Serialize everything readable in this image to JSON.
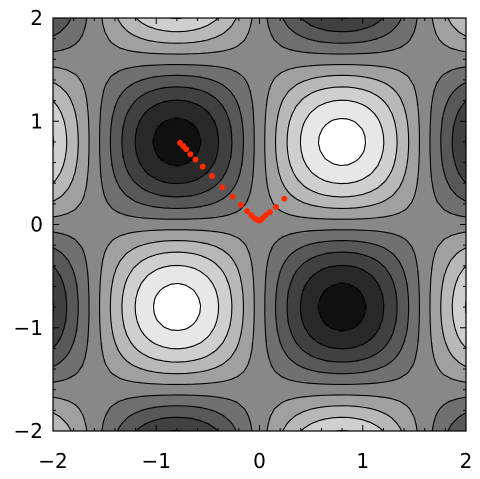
{
  "chart_data": {
    "type": "contour",
    "function": "sin(x*pi/1.6)*sin(y*pi/1.6)",
    "xlim": [
      -2,
      2
    ],
    "ylim": [
      -2,
      2
    ],
    "x_ticks": [
      "-2",
      "-1",
      "0",
      "1",
      "2"
    ],
    "y_ticks": [
      "-2",
      "-1",
      "0",
      "1",
      "2"
    ],
    "contour_levels": [
      -0.9,
      -0.7,
      -0.5,
      -0.3,
      -0.1,
      0.1,
      0.3,
      0.5,
      0.7,
      0.9
    ],
    "shading": "grayscale, dark = low, white = high",
    "grid": false,
    "legend": "none",
    "title": "",
    "xlabel": "",
    "ylabel": "",
    "colors": {
      "background": "#ffffff",
      "contour_line": "#000000",
      "frame": "#000000",
      "trajectory": "#ff2a00",
      "lowest_fill": "#111111",
      "highest_fill": "#ffffff"
    },
    "series": [
      {
        "type": "scatter",
        "points": [
          {
            "x": -0.77,
            "y": 0.79
          },
          {
            "x": -0.74,
            "y": 0.76
          },
          {
            "x": -0.71,
            "y": 0.73
          },
          {
            "x": -0.67,
            "y": 0.68
          },
          {
            "x": -0.62,
            "y": 0.63
          },
          {
            "x": -0.55,
            "y": 0.56
          },
          {
            "x": -0.46,
            "y": 0.47
          },
          {
            "x": -0.36,
            "y": 0.36
          },
          {
            "x": -0.26,
            "y": 0.27
          },
          {
            "x": -0.18,
            "y": 0.19
          },
          {
            "x": -0.12,
            "y": 0.13
          },
          {
            "x": -0.08,
            "y": 0.09
          },
          {
            "x": -0.05,
            "y": 0.06
          },
          {
            "x": -0.03,
            "y": 0.05
          },
          {
            "x": -0.01,
            "y": 0.04
          },
          {
            "x": 0.01,
            "y": 0.04
          },
          {
            "x": 0.03,
            "y": 0.06
          },
          {
            "x": 0.06,
            "y": 0.09
          },
          {
            "x": 0.1,
            "y": 0.12
          },
          {
            "x": 0.16,
            "y": 0.17
          },
          {
            "x": 0.24,
            "y": 0.25
          }
        ]
      }
    ]
  }
}
